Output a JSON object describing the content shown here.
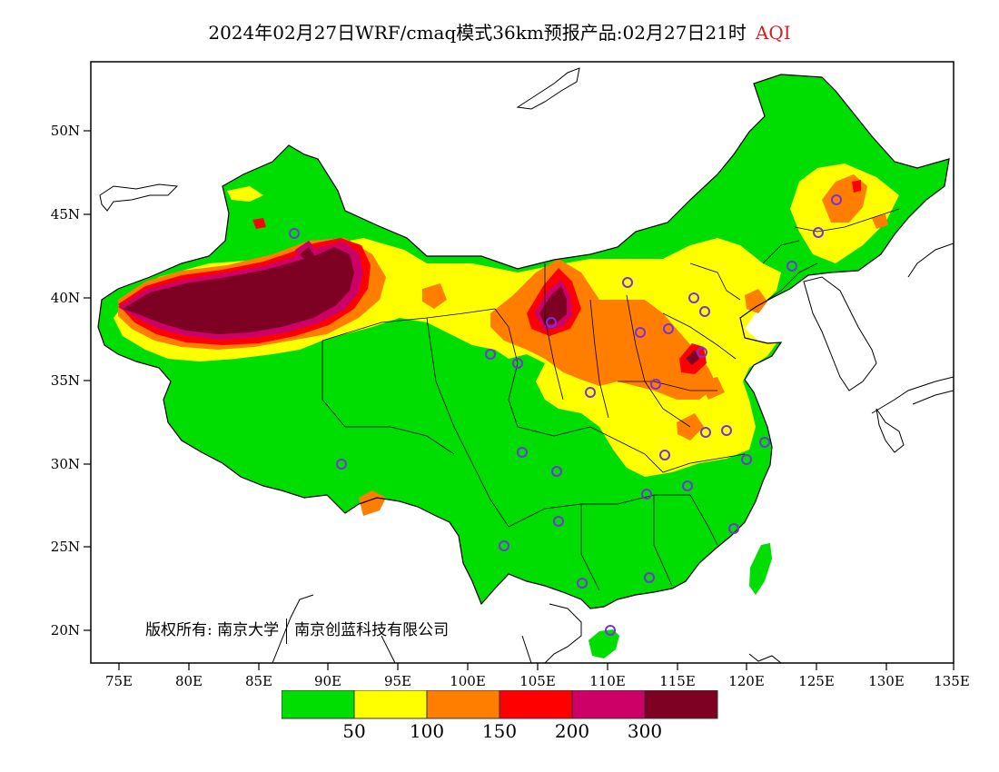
{
  "title": {
    "main": "2024年02月27日WRF/cmaq模式36km预报产品:02月27日21时",
    "variable": "AQI"
  },
  "axes": {
    "x_ticks": [
      "75E",
      "80E",
      "85E",
      "90E",
      "95E",
      "100E",
      "105E",
      "110E",
      "115E",
      "120E",
      "125E",
      "130E",
      "135E"
    ],
    "y_ticks": [
      "50N",
      "45N",
      "40N",
      "35N",
      "30N",
      "25N",
      "20N"
    ]
  },
  "copyright": {
    "prefix": "版权所有:",
    "org1": "南京大学",
    "org2": "南京创蓝科技有限公司"
  },
  "legend": {
    "colors": [
      "#00dd00",
      "#ffff00",
      "#ff7e00",
      "#ff0000",
      "#cc0066",
      "#7e0023"
    ],
    "labels": [
      "50",
      "100",
      "150",
      "200",
      "300"
    ]
  },
  "colors": {
    "good": "#00dd00",
    "moderate": "#ffff00",
    "sensitive": "#ff7e00",
    "unhealthy": "#ff0000",
    "very_unhealthy": "#cc0066",
    "hazardous": "#7e0023",
    "station": "#7b2fe0"
  }
}
